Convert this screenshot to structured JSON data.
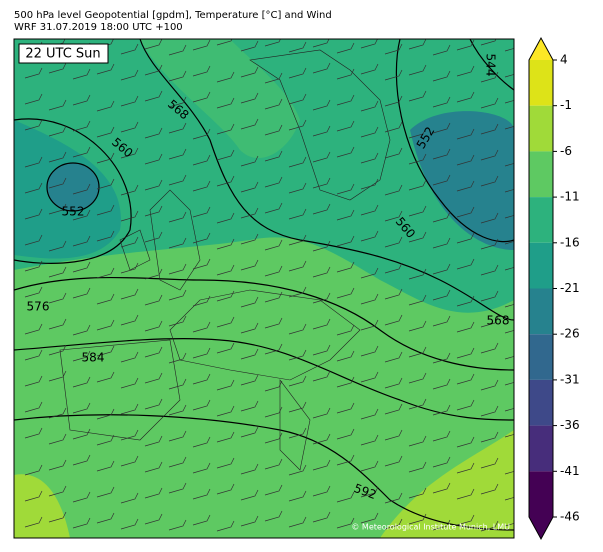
{
  "header": {
    "title": "500 hPa level Geopotential [gpdm], Temperature [°C] and Wind",
    "subtitle": "WRF 31.07.2019 18:00 UTC +100"
  },
  "map": {
    "time_label": "22 UTC Sun",
    "contour_labels": [
      568,
      560,
      552,
      576,
      584,
      592,
      544,
      552,
      560,
      568
    ],
    "credit": "© Meteorological Institute Munich, LMU"
  },
  "colorbar": {
    "range": [
      -46,
      4
    ],
    "ticks": [
      4,
      -1,
      -6,
      -11,
      -16,
      -21,
      -26,
      -31,
      -36,
      -41,
      -46
    ],
    "colors": [
      "#dde318",
      "#a0da39",
      "#5ec962",
      "#2db27d",
      "#1f9e89",
      "#26828e",
      "#31688e",
      "#3e4989",
      "#472d7b",
      "#440154"
    ],
    "over_color": "#fde725",
    "under_color": "#440154"
  }
}
